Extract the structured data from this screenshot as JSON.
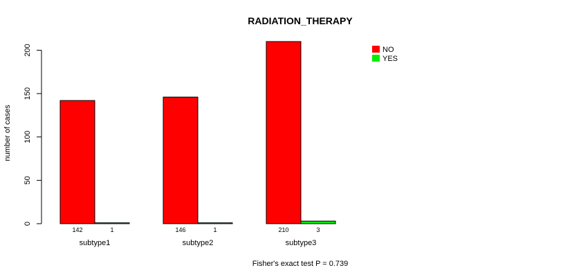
{
  "chart_data": {
    "type": "bar",
    "title": "RADIATION_THERAPY",
    "ylabel": "number of cases",
    "footnote": "Fisher's exact test P = 0.739",
    "categories": [
      "subtype1",
      "subtype2",
      "subtype3"
    ],
    "series": [
      {
        "name": "NO",
        "color": "#ff0000",
        "values": [
          142,
          146,
          210
        ]
      },
      {
        "name": "YES",
        "color": "#00ee00",
        "values": [
          1,
          1,
          3
        ]
      }
    ],
    "ylim": [
      0,
      210
    ],
    "yticks": [
      0,
      50,
      100,
      150,
      200
    ],
    "legend_position": "top-right"
  }
}
